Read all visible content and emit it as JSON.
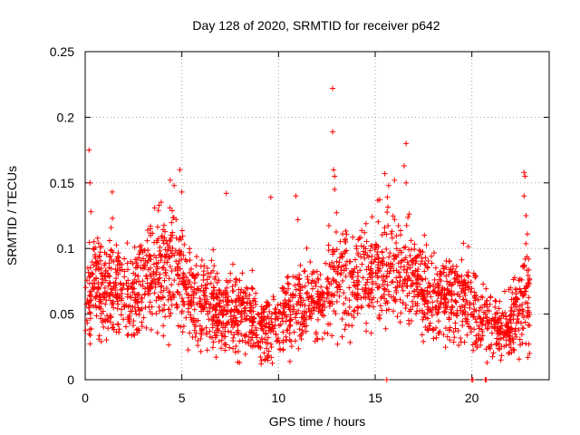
{
  "chart_data": {
    "type": "scatter",
    "title": "Day 128 of 2020, SRMTID for receiver p642",
    "xlabel": "GPS time / hours",
    "ylabel": "SRMTID / TECUs",
    "xlim": [
      0,
      24
    ],
    "ylim": [
      0,
      0.25
    ],
    "grid": true,
    "marker": "+",
    "color": "#ff0000",
    "x_ticks": [
      0,
      5,
      10,
      15,
      20
    ],
    "x_tick_labels": [
      "0",
      "5",
      "10",
      "15",
      "20"
    ],
    "y_ticks": [
      0,
      0.05,
      0.1,
      0.15,
      0.2,
      0.25
    ],
    "y_tick_labels": [
      "0",
      "0.05",
      "0.1",
      "0.15",
      "0.2",
      "0.25"
    ],
    "trend": {
      "x": [
        0,
        0.5,
        1,
        1.5,
        2,
        2.5,
        3,
        3.5,
        4,
        4.5,
        5,
        5.5,
        6,
        6.5,
        7,
        7.5,
        8,
        8.5,
        9,
        9.5,
        10,
        10.5,
        11,
        11.5,
        12,
        12.5,
        13,
        13.5,
        14,
        14.5,
        15,
        15.5,
        16,
        16.5,
        17,
        17.5,
        18,
        18.5,
        19,
        19.5,
        20,
        20.5,
        21,
        21.5,
        22,
        22.5,
        23
      ],
      "y": [
        0.06,
        0.075,
        0.068,
        0.072,
        0.065,
        0.07,
        0.075,
        0.08,
        0.082,
        0.085,
        0.075,
        0.065,
        0.058,
        0.055,
        0.055,
        0.052,
        0.05,
        0.048,
        0.042,
        0.038,
        0.045,
        0.05,
        0.055,
        0.058,
        0.06,
        0.07,
        0.078,
        0.08,
        0.072,
        0.075,
        0.085,
        0.088,
        0.082,
        0.08,
        0.075,
        0.068,
        0.065,
        0.062,
        0.06,
        0.065,
        0.055,
        0.05,
        0.045,
        0.038,
        0.04,
        0.055,
        0.068
      ],
      "spread": [
        0.02,
        0.025,
        0.025,
        0.025,
        0.022,
        0.025,
        0.025,
        0.025,
        0.028,
        0.03,
        0.025,
        0.022,
        0.02,
        0.02,
        0.02,
        0.02,
        0.02,
        0.02,
        0.018,
        0.018,
        0.018,
        0.018,
        0.02,
        0.02,
        0.022,
        0.025,
        0.028,
        0.028,
        0.025,
        0.025,
        0.028,
        0.028,
        0.028,
        0.025,
        0.022,
        0.022,
        0.022,
        0.022,
        0.022,
        0.022,
        0.02,
        0.02,
        0.018,
        0.015,
        0.018,
        0.022,
        0.025
      ]
    },
    "point_count": 2400,
    "outliers": [
      {
        "x": 0.2,
        "y": 0.175
      },
      {
        "x": 0.25,
        "y": 0.15
      },
      {
        "x": 0.3,
        "y": 0.128
      },
      {
        "x": 1.4,
        "y": 0.143
      },
      {
        "x": 4.4,
        "y": 0.152
      },
      {
        "x": 4.6,
        "y": 0.148
      },
      {
        "x": 4.9,
        "y": 0.16
      },
      {
        "x": 5.0,
        "y": 0.143
      },
      {
        "x": 7.3,
        "y": 0.142
      },
      {
        "x": 9.6,
        "y": 0.139
      },
      {
        "x": 10.9,
        "y": 0.14
      },
      {
        "x": 11.0,
        "y": 0.122
      },
      {
        "x": 12.8,
        "y": 0.222
      },
      {
        "x": 12.8,
        "y": 0.189
      },
      {
        "x": 12.85,
        "y": 0.16
      },
      {
        "x": 12.9,
        "y": 0.155
      },
      {
        "x": 12.9,
        "y": 0.145
      },
      {
        "x": 15.5,
        "y": 0.157
      },
      {
        "x": 15.7,
        "y": 0.148
      },
      {
        "x": 16.0,
        "y": 0.152
      },
      {
        "x": 16.6,
        "y": 0.18
      },
      {
        "x": 16.5,
        "y": 0.163
      },
      {
        "x": 16.6,
        "y": 0.15
      },
      {
        "x": 22.7,
        "y": 0.158
      },
      {
        "x": 22.75,
        "y": 0.155
      },
      {
        "x": 22.7,
        "y": 0.14
      },
      {
        "x": 22.8,
        "y": 0.125
      },
      {
        "x": 15.6,
        "y": 0.0
      },
      {
        "x": 20.0,
        "y": 0.0
      },
      {
        "x": 20.05,
        "y": 0.0
      },
      {
        "x": 20.7,
        "y": 0.0
      },
      {
        "x": 20.75,
        "y": 0.0
      },
      {
        "x": 22.9,
        "y": 0.017
      },
      {
        "x": 9.1,
        "y": 0.012
      },
      {
        "x": 9.3,
        "y": 0.015
      },
      {
        "x": 21.5,
        "y": 0.015
      }
    ]
  }
}
